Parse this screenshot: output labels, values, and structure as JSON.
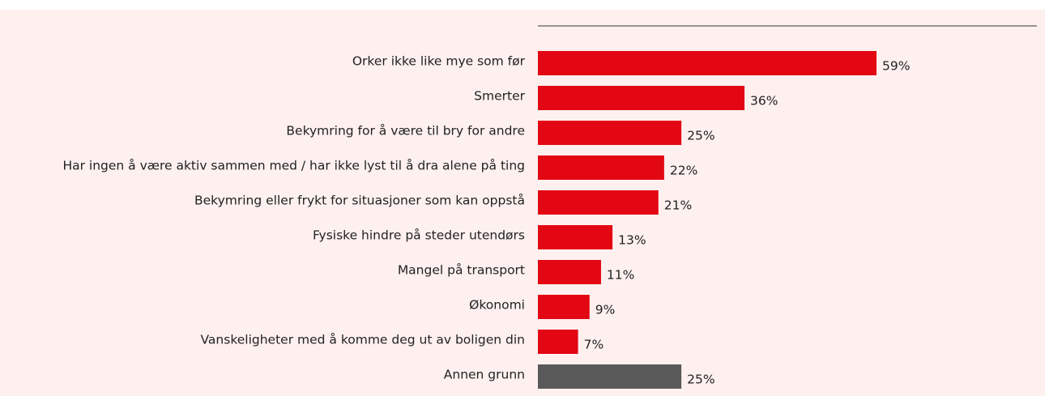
{
  "chart_data": {
    "type": "bar",
    "orientation": "horizontal",
    "categories": [
      "Orker ikke like mye som før",
      "Smerter",
      "Bekymring for å være til bry for andre",
      "Har ingen å være aktiv sammen med / har ikke lyst til å dra alene på ting",
      "Bekymring eller frykt for situasjoner som kan oppstå",
      "Fysiske hindre på steder utendørs",
      "Mangel på transport",
      "Økonomi",
      "Vanskeligheter med å komme deg ut av boligen din",
      "Annen grunn"
    ],
    "values": [
      59,
      36,
      25,
      22,
      21,
      13,
      11,
      9,
      7,
      25
    ],
    "value_labels": [
      "59%",
      "36%",
      "25%",
      "22%",
      "21%",
      "13%",
      "11%",
      "9%",
      "7%",
      "25%"
    ],
    "colors": [
      "#e30613",
      "#e30613",
      "#e30613",
      "#e30613",
      "#e30613",
      "#e30613",
      "#e30613",
      "#e30613",
      "#e30613",
      "#595959"
    ]
  }
}
